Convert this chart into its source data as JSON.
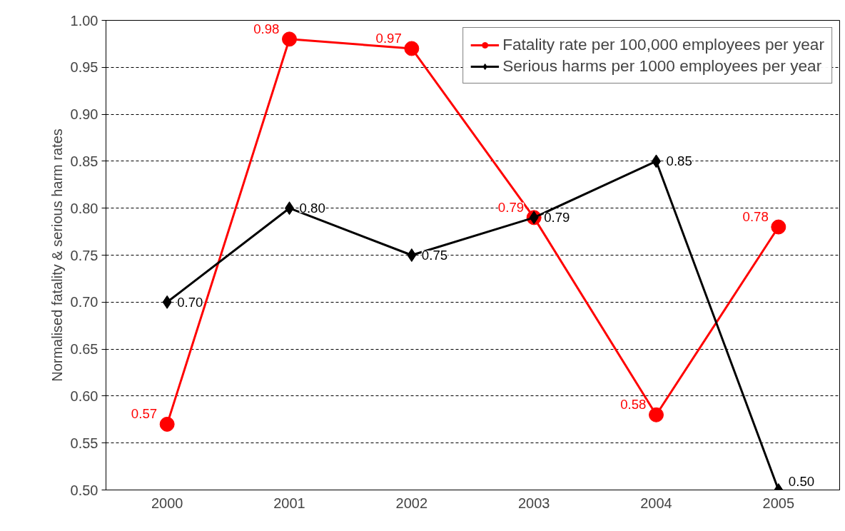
{
  "chart_data": {
    "type": "line",
    "ylabel": "Normalised fatality & serious harm rates",
    "categories": [
      "2000",
      "2001",
      "2002",
      "2003",
      "2004",
      "2005"
    ],
    "series": [
      {
        "name": "Fatality rate per 100,000 employees per year",
        "color": "#ff0000",
        "marker": "circle",
        "values": [
          0.57,
          0.98,
          0.97,
          0.79,
          0.58,
          0.78
        ],
        "value_labels": [
          "0.57",
          "0.98",
          "0.97",
          "0.79",
          "0.58",
          "0.78"
        ]
      },
      {
        "name": "Serious harms per 1000 employees per year",
        "color": "#000000",
        "marker": "diamond",
        "values": [
          0.7,
          0.8,
          0.75,
          0.79,
          0.85,
          0.5
        ],
        "value_labels": [
          "0.70",
          "0.80",
          "0.75",
          "0.79",
          "0.85",
          "0.50"
        ]
      }
    ],
    "ylim": [
      0.5,
      1.0
    ],
    "yticks": [
      {
        "value": 0.5,
        "label": "0.50"
      },
      {
        "value": 0.55,
        "label": "0.55"
      },
      {
        "value": 0.6,
        "label": "0.60"
      },
      {
        "value": 0.65,
        "label": "0.65"
      },
      {
        "value": 0.7,
        "label": "0.70"
      },
      {
        "value": 0.75,
        "label": "0.75"
      },
      {
        "value": 0.8,
        "label": "0.80"
      },
      {
        "value": 0.85,
        "label": "0.85"
      },
      {
        "value": 0.9,
        "label": "0.90"
      },
      {
        "value": 0.95,
        "label": "0.95"
      },
      {
        "value": 1.0,
        "label": "1.00"
      }
    ],
    "grid": "y",
    "legend": "top right",
    "line_style": "solid"
  }
}
